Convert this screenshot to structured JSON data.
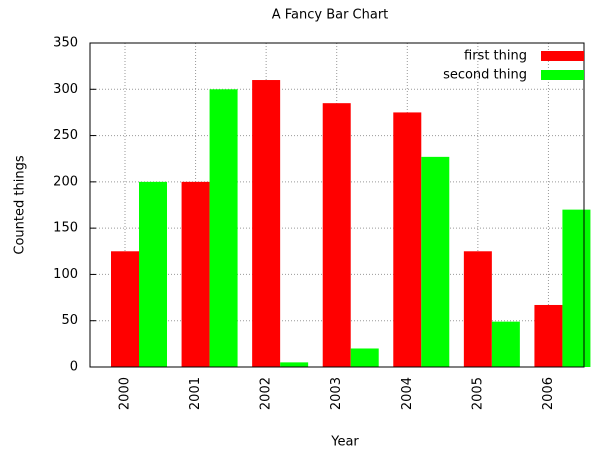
{
  "chart_data": {
    "type": "bar",
    "title": "A Fancy Bar Chart",
    "x_label": "Year",
    "y_label": "Counted things",
    "categories": [
      "2000",
      "2001",
      "2002",
      "2003",
      "2004",
      "2005",
      "2006"
    ],
    "series": [
      {
        "name": "first thing",
        "color": "#ff0000",
        "values": [
          125,
          200,
          310,
          285,
          275,
          125,
          67
        ]
      },
      {
        "name": "second thing",
        "color": "#00ff00",
        "values": [
          200,
          300,
          5,
          20,
          227,
          49,
          170
        ]
      }
    ],
    "ylim": [
      0,
      350
    ],
    "yticks": [
      0,
      50,
      100,
      150,
      200,
      250,
      300,
      350
    ],
    "grid": true,
    "legend": "top right"
  }
}
